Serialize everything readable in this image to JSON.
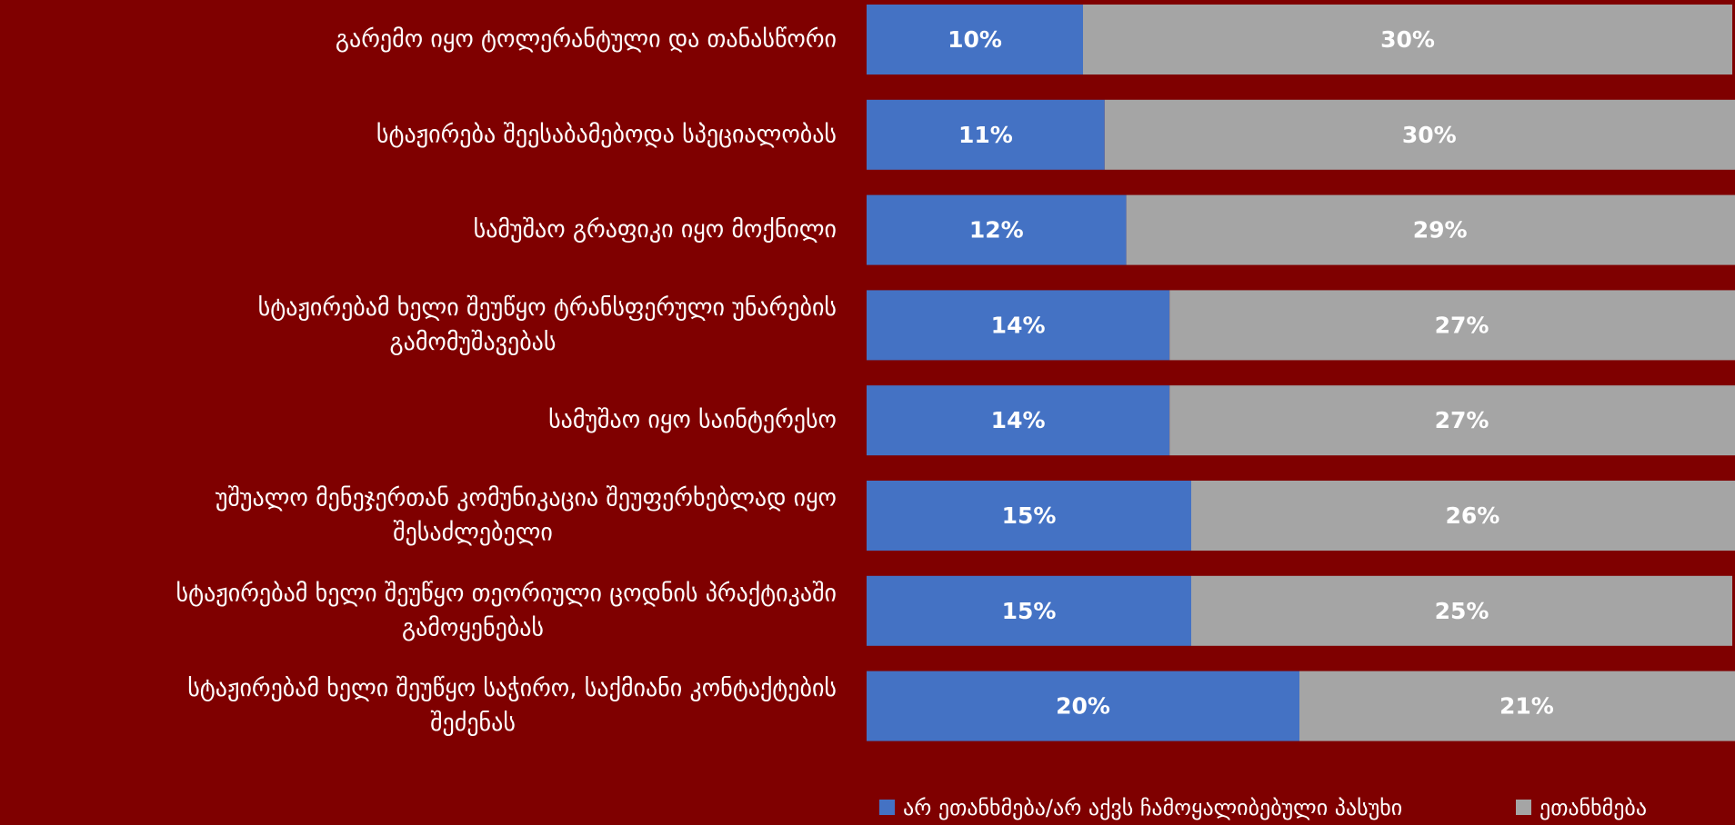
{
  "chart_data": {
    "type": "bar",
    "orientation": "horizontal",
    "stacked": true,
    "value_format": "percent",
    "categories": [
      "გარემო იყო ტოლერანტული და თანასწორი",
      "სტაჟირება შეესაბამებოდა სპეციალობას",
      "სამუშაო გრაფიკი იყო მოქნილი",
      "სტაჟირებამ ხელი შეუწყო ტრანსფერული უნარების გამომუშავებას",
      "სამუშაო იყო საინტერესო",
      "უშუალო მენეჯერთან კომუნიკაცია შეუფერხებლად იყო შესაძლებელი",
      "სტაჟირებამ ხელი შეუწყო თეორიული ცოდნის პრაქტიკაში გამოყენებას",
      "სტაჟირებამ ხელი შეუწყო საჭირო, საქმიანი კონტაქტების შეძენას"
    ],
    "category_lines": [
      [
        "გარემო იყო ტოლერანტული და თანასწორი"
      ],
      [
        "სტაჟირება შეესაბამებოდა სპეციალობას"
      ],
      [
        "სამუშაო გრაფიკი იყო მოქნილი"
      ],
      [
        "სტაჟირებამ ხელი შეუწყო ტრანსფერული უნარების",
        "გამომუშავებას"
      ],
      [
        "სამუშაო იყო საინტერესო"
      ],
      [
        "უშუალო მენეჯერთან კომუნიკაცია შეუფერხებლად იყო",
        "შესაძლებელი"
      ],
      [
        "სტაჟირებამ ხელი შეუწყო თეორიული ცოდნის პრაქტიკაში",
        "გამოყენებას"
      ],
      [
        "სტაჟირებამ ხელი შეუწყო საჭირო, საქმიანი კონტაქტების",
        "შეძენას"
      ]
    ],
    "series": [
      {
        "name": "არ ეთანხმება/არ აქვს ჩამოყალიბებული პასუხი",
        "color": "#4472c4",
        "values": [
          10,
          11,
          12,
          14,
          14,
          15,
          15,
          20
        ]
      },
      {
        "name": "ეთანხმება",
        "color": "#a5a5a5",
        "values": [
          30,
          30,
          29,
          27,
          27,
          26,
          25,
          21
        ]
      }
    ],
    "xlim": [
      0,
      40
    ],
    "legend_position": "bottom",
    "gridlines": false,
    "background_color": "#7f0000",
    "text_color": "#ffffff"
  }
}
